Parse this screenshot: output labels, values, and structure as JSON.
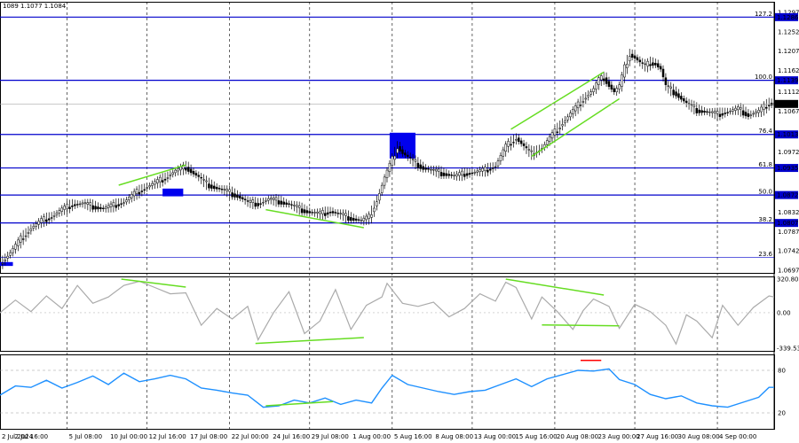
{
  "header": {
    "ohlc_label": "1089 1.1077 1.1084"
  },
  "chart_data": {
    "type": "candlestick",
    "symbol": "EURUSD",
    "current_price": 1.1084,
    "price_panel": {
      "ylim": [
        1.0697,
        1.1297
      ],
      "tick_labels": [
        {
          "value": 1.1297,
          "text": "1.1297"
        },
        {
          "value": 1.1252,
          "text": "1.1252"
        },
        {
          "value": 1.1207,
          "text": "1.1207"
        },
        {
          "value": 1.1162,
          "text": "1.1162"
        },
        {
          "value": 1.1112,
          "text": "1.1112"
        },
        {
          "value": 1.1067,
          "text": "1.1067"
        },
        {
          "value": 1.0972,
          "text": "1.0972"
        },
        {
          "value": 1.0832,
          "text": "1.0832"
        },
        {
          "value": 1.0787,
          "text": "1.0787"
        },
        {
          "value": 1.0742,
          "text": "1.0742"
        },
        {
          "value": 1.0697,
          "text": "1.0697"
        }
      ],
      "fib_levels": [
        {
          "label": "127.2",
          "value": 1.1286,
          "highlight": true
        },
        {
          "label": "100.0",
          "value": 1.1139,
          "highlight": true
        },
        {
          "label": "76.4",
          "value": 1.1013,
          "highlight": true
        },
        {
          "label": "61.8",
          "value": 1.0935,
          "highlight": true
        },
        {
          "label": "50.0",
          "value": 1.0872,
          "highlight": true
        },
        {
          "label": "38.2",
          "value": 1.0807,
          "highlight": true
        },
        {
          "label": "23.6",
          "value": 1.0727,
          "highlight": false
        }
      ],
      "close_path": [
        [
          0,
          1.0712
        ],
        [
          4,
          1.0738
        ],
        [
          8,
          1.077
        ],
        [
          12,
          1.0795
        ],
        [
          16,
          1.0812
        ],
        [
          20,
          1.0822
        ],
        [
          24,
          1.0838
        ],
        [
          28,
          1.085
        ],
        [
          32,
          1.0852
        ],
        [
          36,
          1.0846
        ],
        [
          40,
          1.084
        ],
        [
          44,
          1.0848
        ],
        [
          48,
          1.0856
        ],
        [
          52,
          1.0875
        ],
        [
          56,
          1.0888
        ],
        [
          60,
          1.09
        ],
        [
          64,
          1.0912
        ],
        [
          68,
          1.0928
        ],
        [
          72,
          1.0937
        ],
        [
          76,
          1.0918
        ],
        [
          80,
          1.0898
        ],
        [
          84,
          1.0888
        ],
        [
          88,
          1.088
        ],
        [
          92,
          1.087
        ],
        [
          96,
          1.0855
        ],
        [
          100,
          1.0852
        ],
        [
          104,
          1.0862
        ],
        [
          108,
          1.0858
        ],
        [
          112,
          1.085
        ],
        [
          116,
          1.084
        ],
        [
          120,
          1.0832
        ],
        [
          124,
          1.0828
        ],
        [
          128,
          1.0834
        ],
        [
          132,
          1.0826
        ],
        [
          136,
          1.0818
        ],
        [
          140,
          1.0812
        ],
        [
          143,
          1.082
        ],
        [
          146,
          1.086
        ],
        [
          149,
          1.0912
        ],
        [
          152,
          1.0955
        ],
        [
          154,
          1.0985
        ],
        [
          156,
          1.097
        ],
        [
          160,
          1.095
        ],
        [
          164,
          1.0935
        ],
        [
          168,
          1.0928
        ],
        [
          172,
          1.0922
        ],
        [
          176,
          1.0916
        ],
        [
          180,
          1.0922
        ],
        [
          184,
          1.0925
        ],
        [
          188,
          1.093
        ],
        [
          192,
          1.094
        ],
        [
          196,
          1.0985
        ],
        [
          200,
          1.1005
        ],
        [
          204,
          1.0978
        ],
        [
          206,
          1.0968
        ],
        [
          210,
          1.0982
        ],
        [
          214,
          1.1012
        ],
        [
          218,
          1.104
        ],
        [
          222,
          1.1068
        ],
        [
          226,
          1.1095
        ],
        [
          230,
          1.1118
        ],
        [
          232,
          1.114
        ],
        [
          234,
          1.1145
        ],
        [
          236,
          1.1128
        ],
        [
          238,
          1.1112
        ],
        [
          240,
          1.1125
        ],
        [
          242,
          1.1168
        ],
        [
          244,
          1.12
        ],
        [
          246,
          1.1192
        ],
        [
          248,
          1.118
        ],
        [
          250,
          1.1172
        ],
        [
          252,
          1.118
        ],
        [
          254,
          1.1178
        ],
        [
          256,
          1.1165
        ],
        [
          258,
          1.1125
        ],
        [
          262,
          1.1108
        ],
        [
          266,
          1.1085
        ],
        [
          270,
          1.107
        ],
        [
          274,
          1.1065
        ],
        [
          278,
          1.106
        ],
        [
          282,
          1.1066
        ],
        [
          286,
          1.1072
        ],
        [
          290,
          1.1058
        ],
        [
          294,
          1.1066
        ],
        [
          298,
          1.1086
        ],
        [
          300,
          1.1084
        ]
      ],
      "trend_lines": [
        {
          "points": [
            [
              46,
              1.0895
            ],
            [
              72,
              1.0942
            ]
          ],
          "color": "#66dd22"
        },
        {
          "points": [
            [
              103,
              1.0838
            ],
            [
              141,
              1.0796
            ]
          ],
          "color": "#66dd22"
        },
        {
          "points": [
            [
              198,
              1.1025
            ],
            [
              234,
              1.1158
            ]
          ],
          "color": "#66dd22"
        },
        {
          "points": [
            [
              206,
              1.0962
            ],
            [
              240,
              1.1096
            ]
          ],
          "color": "#66dd22"
        }
      ],
      "zones": [
        {
          "x0": 0,
          "x1": 5,
          "y0": 1.0707,
          "y1": 1.0716
        },
        {
          "x0": 63,
          "x1": 71,
          "y0": 1.0869,
          "y1": 1.0887
        },
        {
          "x0": 151,
          "x1": 161,
          "y0": 1.0957,
          "y1": 1.1017
        }
      ]
    },
    "oscillator_panel": {
      "ylim": [
        -339.532,
        320.8062
      ],
      "tick_labels": [
        {
          "value": 320.8062,
          "text": "320.8062"
        },
        {
          "value": 0.0,
          "text": "0.00"
        },
        {
          "value": -339.532,
          "text": "-339.532"
        }
      ],
      "values": [
        [
          0,
          0
        ],
        [
          6,
          120
        ],
        [
          12,
          10
        ],
        [
          18,
          160
        ],
        [
          24,
          40
        ],
        [
          30,
          260
        ],
        [
          36,
          90
        ],
        [
          42,
          150
        ],
        [
          48,
          260
        ],
        [
          54,
          300
        ],
        [
          60,
          240
        ],
        [
          66,
          180
        ],
        [
          72,
          190
        ],
        [
          78,
          -120
        ],
        [
          84,
          40
        ],
        [
          90,
          -60
        ],
        [
          96,
          60
        ],
        [
          100,
          -260
        ],
        [
          106,
          0
        ],
        [
          112,
          200
        ],
        [
          118,
          -200
        ],
        [
          124,
          -80
        ],
        [
          130,
          220
        ],
        [
          136,
          -160
        ],
        [
          142,
          70
        ],
        [
          148,
          150
        ],
        [
          150,
          280
        ],
        [
          156,
          90
        ],
        [
          162,
          60
        ],
        [
          168,
          100
        ],
        [
          174,
          -40
        ],
        [
          180,
          40
        ],
        [
          186,
          180
        ],
        [
          192,
          110
        ],
        [
          196,
          290
        ],
        [
          200,
          240
        ],
        [
          206,
          -60
        ],
        [
          210,
          150
        ],
        [
          216,
          10
        ],
        [
          222,
          -160
        ],
        [
          226,
          20
        ],
        [
          230,
          130
        ],
        [
          236,
          60
        ],
        [
          240,
          -150
        ],
        [
          246,
          80
        ],
        [
          252,
          10
        ],
        [
          258,
          -120
        ],
        [
          262,
          -300
        ],
        [
          266,
          -20
        ],
        [
          270,
          -80
        ],
        [
          276,
          -240
        ],
        [
          280,
          70
        ],
        [
          286,
          -120
        ],
        [
          292,
          50
        ],
        [
          298,
          160
        ],
        [
          300,
          150
        ]
      ],
      "trend_lines": [
        {
          "points": [
            [
              47,
              320.8
            ],
            [
              72,
              245
            ]
          ],
          "color": "#66dd22"
        },
        {
          "points": [
            [
              99,
              -294
            ],
            [
              141,
              -238
            ]
          ],
          "color": "#66dd22"
        },
        {
          "points": [
            [
              196,
              320.8
            ],
            [
              234,
              168
            ]
          ],
          "color": "#66dd22"
        },
        {
          "points": [
            [
              210,
              -117
            ],
            [
              240,
              -126
            ]
          ],
          "color": "#66dd22"
        }
      ]
    },
    "rsi_panel": {
      "ylim": [
        0,
        100
      ],
      "tick_labels": [
        {
          "value": 80,
          "text": "80"
        },
        {
          "value": 20,
          "text": "20"
        }
      ],
      "levels": [
        80,
        20
      ],
      "values": [
        [
          0,
          45
        ],
        [
          6,
          58
        ],
        [
          12,
          56
        ],
        [
          18,
          66
        ],
        [
          24,
          55
        ],
        [
          30,
          63
        ],
        [
          36,
          72
        ],
        [
          42,
          60
        ],
        [
          48,
          76
        ],
        [
          54,
          64
        ],
        [
          60,
          68
        ],
        [
          66,
          73
        ],
        [
          72,
          68
        ],
        [
          78,
          55
        ],
        [
          84,
          52
        ],
        [
          90,
          48
        ],
        [
          96,
          45
        ],
        [
          102,
          28
        ],
        [
          108,
          30
        ],
        [
          114,
          38
        ],
        [
          120,
          34
        ],
        [
          126,
          41
        ],
        [
          132,
          32
        ],
        [
          138,
          38
        ],
        [
          144,
          34
        ],
        [
          148,
          55
        ],
        [
          152,
          73
        ],
        [
          158,
          60
        ],
        [
          164,
          55
        ],
        [
          170,
          50
        ],
        [
          176,
          46
        ],
        [
          182,
          50
        ],
        [
          188,
          52
        ],
        [
          194,
          60
        ],
        [
          200,
          68
        ],
        [
          206,
          57
        ],
        [
          212,
          68
        ],
        [
          218,
          74
        ],
        [
          224,
          80
        ],
        [
          230,
          79
        ],
        [
          236,
          82
        ],
        [
          240,
          67
        ],
        [
          246,
          60
        ],
        [
          252,
          46
        ],
        [
          258,
          40
        ],
        [
          264,
          44
        ],
        [
          270,
          34
        ],
        [
          276,
          30
        ],
        [
          282,
          28
        ],
        [
          288,
          35
        ],
        [
          294,
          42
        ],
        [
          298,
          56
        ],
        [
          300,
          56
        ]
      ],
      "trend_lines": [
        {
          "points": [
            [
              103,
              30
            ],
            [
              129,
              36
            ]
          ],
          "color": "#66dd22"
        },
        {
          "points": [
            [
              225,
              94
            ],
            [
              233,
              94
            ]
          ],
          "color": "#ff0000"
        }
      ]
    },
    "x_axis": {
      "labels": [
        {
          "x": 0,
          "text": "2 Jul 2024"
        },
        {
          "x": 5,
          "text": "2 Jul 16:00"
        },
        {
          "x": 26,
          "text": "5 Jul 08:00"
        },
        {
          "x": 42,
          "text": "10 Jul 00:00"
        },
        {
          "x": 57,
          "text": "12 Jul 16:00"
        },
        {
          "x": 73,
          "text": "17 Jul 08:00"
        },
        {
          "x": 89,
          "text": "22 Jul 00:00"
        },
        {
          "x": 105,
          "text": "24 Jul 16:00"
        },
        {
          "x": 120,
          "text": "29 Jul 08:00"
        },
        {
          "x": 136,
          "text": "1 Aug 00:00"
        },
        {
          "x": 152,
          "text": "5 Aug 16:00"
        },
        {
          "x": 168,
          "text": "8 Aug 08:00"
        },
        {
          "x": 183,
          "text": "13 Aug 00:00"
        },
        {
          "x": 199,
          "text": "15 Aug 16:00"
        },
        {
          "x": 215,
          "text": "20 Aug 08:00"
        },
        {
          "x": 231,
          "text": "23 Aug 00:00"
        },
        {
          "x": 246,
          "text": "27 Aug 16:00"
        },
        {
          "x": 262,
          "text": "30 Aug 08:00"
        },
        {
          "x": 278,
          "text": "4 Sep 00:00"
        }
      ],
      "grid_x": [
        26,
        57,
        89,
        120,
        152,
        183,
        215,
        246,
        278
      ]
    },
    "colors": {
      "price": "#000000",
      "fib_line": "#0000cc",
      "fib_label_bg": "#0000cc",
      "current_price_bg": "#000000",
      "oscillator": "#aaaaaa",
      "rsi": "#1e90ff",
      "trend": "#66dd22",
      "zone": "#0000ee",
      "grid": "#000000"
    }
  }
}
